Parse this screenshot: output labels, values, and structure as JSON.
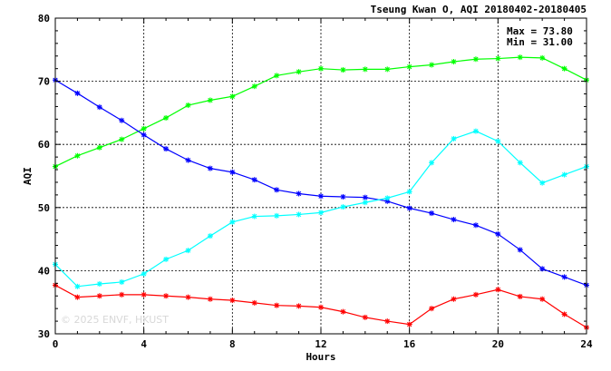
{
  "chart_data": {
    "type": "line",
    "title": "Tseung Kwan O, AQI 20180402-20180405",
    "xlabel": "Hours",
    "ylabel": "AQI",
    "xlim": [
      0,
      24
    ],
    "ylim": [
      30,
      80
    ],
    "x_ticks": [
      0,
      4,
      8,
      12,
      16,
      20,
      24
    ],
    "y_ticks": [
      30,
      40,
      50,
      60,
      70,
      80
    ],
    "grid": true,
    "annotations": {
      "max_text": "Max = 73.80",
      "min_text": "Min = 31.00"
    },
    "watermark": "© 2025  ENVF, HKUST",
    "x": [
      0,
      1,
      2,
      3,
      4,
      5,
      6,
      7,
      8,
      9,
      10,
      11,
      12,
      13,
      14,
      15,
      16,
      17,
      18,
      19,
      20,
      21,
      22,
      23,
      24
    ],
    "series": [
      {
        "color": "#00ff00",
        "values": [
          56.5,
          58.2,
          59.5,
          60.8,
          62.5,
          64.2,
          66.2,
          67.0,
          67.6,
          69.2,
          70.9,
          71.5,
          72.0,
          71.8,
          71.9,
          71.9,
          72.3,
          72.6,
          73.1,
          73.5,
          73.6,
          73.8,
          73.7,
          72.0,
          70.2
        ]
      },
      {
        "color": "#0000ff",
        "values": [
          70.2,
          68.1,
          65.9,
          63.8,
          61.5,
          59.3,
          57.5,
          56.2,
          55.6,
          54.4,
          52.8,
          52.2,
          51.8,
          51.7,
          51.6,
          51.0,
          49.9,
          49.1,
          48.1,
          47.2,
          45.8,
          43.3,
          40.3,
          39.0,
          37.7
        ]
      },
      {
        "color": "#00ffff",
        "values": [
          41.0,
          37.5,
          37.9,
          38.2,
          39.5,
          41.8,
          43.2,
          45.5,
          47.7,
          48.6,
          48.7,
          48.9,
          49.2,
          50.1,
          50.8,
          51.5,
          52.5,
          57.1,
          60.9,
          62.1,
          60.5,
          57.1,
          53.9,
          55.2,
          56.5
        ]
      },
      {
        "color": "#ff0000",
        "values": [
          37.7,
          35.8,
          36.0,
          36.2,
          36.2,
          36.0,
          35.8,
          35.5,
          35.3,
          34.9,
          34.5,
          34.4,
          34.2,
          33.5,
          32.6,
          32.0,
          31.5,
          34.0,
          35.5,
          36.2,
          37.0,
          35.9,
          35.5,
          33.1,
          31.0
        ]
      }
    ]
  }
}
